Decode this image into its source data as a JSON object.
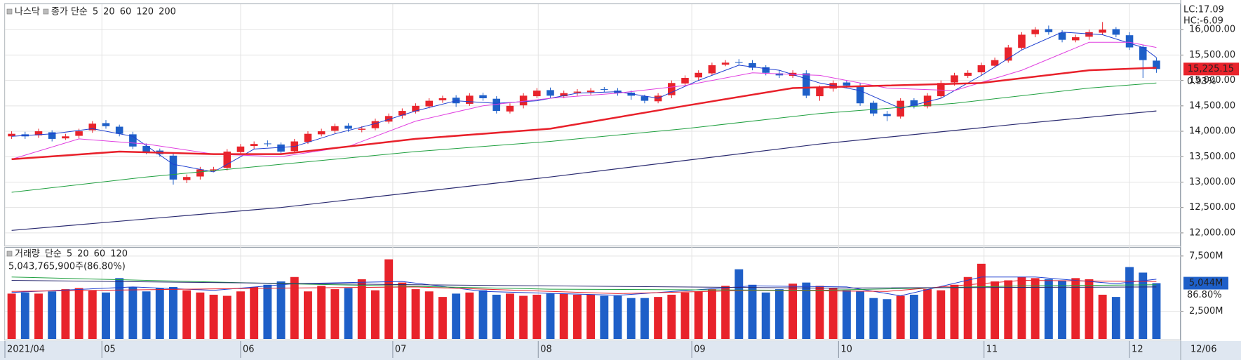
{
  "chart_data": [
    {
      "type": "candlestick",
      "title": "나스닥",
      "ma_label": "종가 단순",
      "ma_label_color": "#1e3fd0",
      "up_color": "#e8232b",
      "down_color": "#1e5fc8",
      "xlim": [
        -0.5,
        86.8
      ],
      "ylim": [
        11750,
        16500
      ],
      "yticks": [
        {
          "value": 12000,
          "label": "12,000.00"
        },
        {
          "value": 12500,
          "label": "12,500.00"
        },
        {
          "value": 13000,
          "label": "13,000.00"
        },
        {
          "value": 13500,
          "label": "13,500.00"
        },
        {
          "value": 14000,
          "label": "14,000.00"
        },
        {
          "value": 14500,
          "label": "14,500.00"
        },
        {
          "value": 15000,
          "label": "15,000.00"
        },
        {
          "value": 15500,
          "label": "15,500.00"
        },
        {
          "value": 16000,
          "label": "16,000.00"
        }
      ],
      "grid": true,
      "open": [
        13900,
        13940,
        13920,
        13980,
        13860,
        13910,
        14020,
        14160,
        14090,
        13940,
        13710,
        13620,
        13520,
        13040,
        13110,
        13230,
        13280,
        13590,
        13710,
        13760,
        13740,
        13610,
        13790,
        13940,
        14010,
        14110,
        14030,
        14060,
        14190,
        14310,
        14390,
        14490,
        14610,
        14660,
        14540,
        14710,
        14640,
        14390,
        14510,
        14690,
        14810,
        14690,
        14760,
        14770,
        14830,
        14800,
        14760,
        14690,
        14590,
        14710,
        14940,
        15060,
        15140,
        15310,
        15360,
        15340,
        15260,
        15140,
        15090,
        15140,
        14690,
        14840,
        14960,
        14890,
        14560,
        14340,
        14290,
        14610,
        14490,
        14690,
        14960,
        15090,
        15160,
        15290,
        15390,
        15640,
        15910,
        16010,
        15940,
        15790,
        15860,
        15940,
        16010,
        15890,
        15660,
        15390
      ],
      "high": [
        14000,
        13990,
        14050,
        14020,
        13950,
        14050,
        14200,
        14220,
        14130,
        13990,
        13760,
        13660,
        13560,
        13150,
        13300,
        13300,
        13650,
        13750,
        13800,
        13820,
        13780,
        13850,
        14000,
        14050,
        14150,
        14160,
        14100,
        14250,
        14350,
        14450,
        14550,
        14650,
        14700,
        14710,
        14750,
        14760,
        14690,
        14550,
        14750,
        14850,
        14860,
        14800,
        14830,
        14850,
        14870,
        14850,
        14800,
        14720,
        14750,
        15000,
        15100,
        15200,
        15350,
        15400,
        15420,
        15400,
        15300,
        15200,
        15200,
        15200,
        14900,
        15000,
        15000,
        14950,
        14600,
        14400,
        14650,
        14650,
        14750,
        15000,
        15150,
        15200,
        15350,
        15450,
        15700,
        15950,
        16050,
        16080,
        15990,
        15900,
        16000,
        16150,
        16050,
        15950,
        15700,
        15450
      ],
      "low": [
        13850,
        13850,
        13870,
        13800,
        13830,
        13860,
        13970,
        14050,
        13900,
        13650,
        13550,
        13500,
        12950,
        12980,
        13050,
        13200,
        13230,
        13550,
        13650,
        13700,
        13550,
        13570,
        13750,
        13900,
        13960,
        13990,
        13980,
        14020,
        14150,
        14250,
        14350,
        14450,
        14560,
        14480,
        14500,
        14600,
        14350,
        14350,
        14450,
        14650,
        14650,
        14650,
        14700,
        14720,
        14770,
        14700,
        14620,
        14550,
        14550,
        14650,
        14900,
        15000,
        15100,
        15280,
        15300,
        15200,
        15100,
        15050,
        15050,
        14650,
        14600,
        14780,
        14850,
        14500,
        14300,
        14200,
        14250,
        14450,
        14450,
        14650,
        14900,
        15050,
        15100,
        15250,
        15350,
        15600,
        15850,
        15900,
        15750,
        15750,
        15800,
        15900,
        15850,
        15600,
        15050,
        15150
      ],
      "close": [
        13950,
        13900,
        14000,
        13850,
        13900,
        14000,
        14150,
        14100,
        13950,
        13700,
        13600,
        13550,
        13050,
        13100,
        13250,
        13250,
        13600,
        13700,
        13750,
        13750,
        13600,
        13800,
        13950,
        14000,
        14100,
        14050,
        14050,
        14200,
        14300,
        14400,
        14500,
        14600,
        14650,
        14550,
        14700,
        14650,
        14400,
        14500,
        14700,
        14800,
        14700,
        14750,
        14780,
        14800,
        14820,
        14750,
        14700,
        14600,
        14700,
        14950,
        15050,
        15150,
        15300,
        15350,
        15350,
        15250,
        15150,
        15100,
        15150,
        14700,
        14850,
        14950,
        14900,
        14550,
        14350,
        14300,
        14600,
        14500,
        14700,
        14950,
        15100,
        15150,
        15300,
        15400,
        15650,
        15900,
        16000,
        15950,
        15800,
        15850,
        15950,
        16000,
        15900,
        15650,
        15400,
        15225.15
      ],
      "lines": [
        {
          "name": "5",
          "color": "#1e3fd0",
          "width": 1,
          "x": [
            0,
            3,
            6,
            9,
            12,
            15,
            18,
            21,
            24,
            27,
            30,
            33,
            36,
            39,
            42,
            45,
            48,
            51,
            54,
            57,
            60,
            63,
            66,
            69,
            72,
            75,
            78,
            81,
            84,
            85
          ],
          "values": [
            13900,
            13950,
            14050,
            13900,
            13350,
            13200,
            13650,
            13700,
            13950,
            14150,
            14400,
            14600,
            14550,
            14600,
            14750,
            14780,
            14650,
            15000,
            15300,
            15200,
            14950,
            14800,
            14450,
            14650,
            15100,
            15600,
            15950,
            15900,
            15650,
            15450
          ]
        },
        {
          "name": "20",
          "color": "#e040e0",
          "width": 1,
          "x": [
            0,
            5,
            10,
            15,
            20,
            25,
            30,
            35,
            40,
            45,
            50,
            55,
            60,
            65,
            70,
            75,
            80,
            83,
            85
          ],
          "values": [
            13450,
            13850,
            13750,
            13550,
            13500,
            13700,
            14200,
            14500,
            14650,
            14750,
            14900,
            15150,
            15100,
            14850,
            14800,
            15200,
            15750,
            15750,
            15650
          ]
        },
        {
          "name": "60",
          "color": "#e8202a",
          "width": 2.5,
          "x": [
            0,
            8,
            15,
            20,
            30,
            40,
            50,
            58,
            65,
            72,
            80,
            85
          ],
          "values": [
            13450,
            13600,
            13550,
            13550,
            13850,
            14050,
            14500,
            14850,
            14900,
            14950,
            15200,
            15250
          ]
        },
        {
          "name": "120",
          "color": "#20a040",
          "width": 1,
          "x": [
            0,
            10,
            20,
            30,
            40,
            50,
            60,
            70,
            80,
            85
          ],
          "values": [
            12800,
            13100,
            13350,
            13600,
            13800,
            14050,
            14350,
            14550,
            14850,
            14950
          ]
        },
        {
          "name": "200",
          "color": "#2a2a70",
          "width": 1.2,
          "x": [
            0,
            20,
            40,
            60,
            75,
            85
          ],
          "values": [
            12050,
            12500,
            13100,
            13750,
            14150,
            14400
          ]
        }
      ],
      "lc_label": "LC:17.09",
      "hc_label": "HC:-6.09",
      "last_price_label": "15,225.15",
      "change_label": "0.93%"
    },
    {
      "type": "bar",
      "title": "거래량",
      "ma_label": "단순",
      "ma_label_color": "#1e3fd0",
      "title_color": "#1a9a9a",
      "total_label": "5,043,765,900주(86.80%)",
      "xlim": [
        -0.5,
        86.8
      ],
      "ylim": [
        0,
        8250
      ],
      "yticks": [
        {
          "value": 2500,
          "label": "2,500M"
        },
        {
          "value": 7500,
          "label": "7,500M"
        }
      ],
      "grid": true,
      "xticks": [
        {
          "value": -0.5,
          "label": "2021/04"
        },
        {
          "value": 6.7,
          "label": "05"
        },
        {
          "value": 17.0,
          "label": "06"
        },
        {
          "value": 28.3,
          "label": "07"
        },
        {
          "value": 39.1,
          "label": "08"
        },
        {
          "value": 50.5,
          "label": "09"
        },
        {
          "value": 61.4,
          "label": "10"
        },
        {
          "value": 72.2,
          "label": "11"
        },
        {
          "value": 83.0,
          "label": "12"
        }
      ],
      "end_date_label": "12/06",
      "values": [
        4100,
        4200,
        4100,
        4300,
        4500,
        4600,
        4400,
        4200,
        5500,
        4700,
        4300,
        4600,
        4700,
        4400,
        4200,
        4000,
        3900,
        4300,
        4700,
        4900,
        5200,
        5600,
        4300,
        4800,
        4500,
        4600,
        5400,
        4400,
        7200,
        5100,
        4500,
        4300,
        3800,
        4100,
        4200,
        4400,
        4000,
        4100,
        3900,
        4000,
        4100,
        4100,
        4000,
        4000,
        3900,
        3900,
        3700,
        3700,
        3800,
        4000,
        4200,
        4300,
        4500,
        4800,
        6300,
        4900,
        4200,
        4500,
        5000,
        5100,
        4800,
        4600,
        4400,
        4300,
        3700,
        3600,
        3900,
        4000,
        4500,
        4400,
        4900,
        5600,
        6800,
        5200,
        5300,
        5600,
        5500,
        5400,
        5300,
        5500,
        5400,
        4000,
        3800,
        6500,
        6000,
        5044
      ],
      "lines": [
        {
          "name": "5",
          "color": "#1e3fd0",
          "width": 1,
          "x": [
            0,
            9,
            15,
            21,
            29,
            35,
            45,
            55,
            62,
            66,
            72,
            76,
            82,
            85
          ],
          "values": [
            4200,
            4700,
            4400,
            5000,
            5200,
            4300,
            3950,
            4800,
            4700,
            3900,
            5600,
            5600,
            5000,
            5400
          ]
        },
        {
          "name": "20",
          "color": "#e8202a",
          "width": 1,
          "x": [
            0,
            20,
            30,
            45,
            55,
            65,
            75,
            85
          ],
          "values": [
            4300,
            4600,
            4700,
            4100,
            4400,
            4300,
            5300,
            5200
          ]
        },
        {
          "name": "60",
          "color": "#20a040",
          "width": 1,
          "x": [
            0,
            20,
            40,
            60,
            75,
            85
          ],
          "values": [
            5600,
            5000,
            4500,
            4400,
            4800,
            4900
          ]
        },
        {
          "name": "120",
          "color": "#2a2a70",
          "width": 1,
          "x": [
            0,
            30,
            60,
            85
          ],
          "values": [
            5300,
            4900,
            4600,
            4700
          ]
        }
      ],
      "last_volume_label": "5,044M",
      "ratio_label": "86.80%"
    }
  ]
}
